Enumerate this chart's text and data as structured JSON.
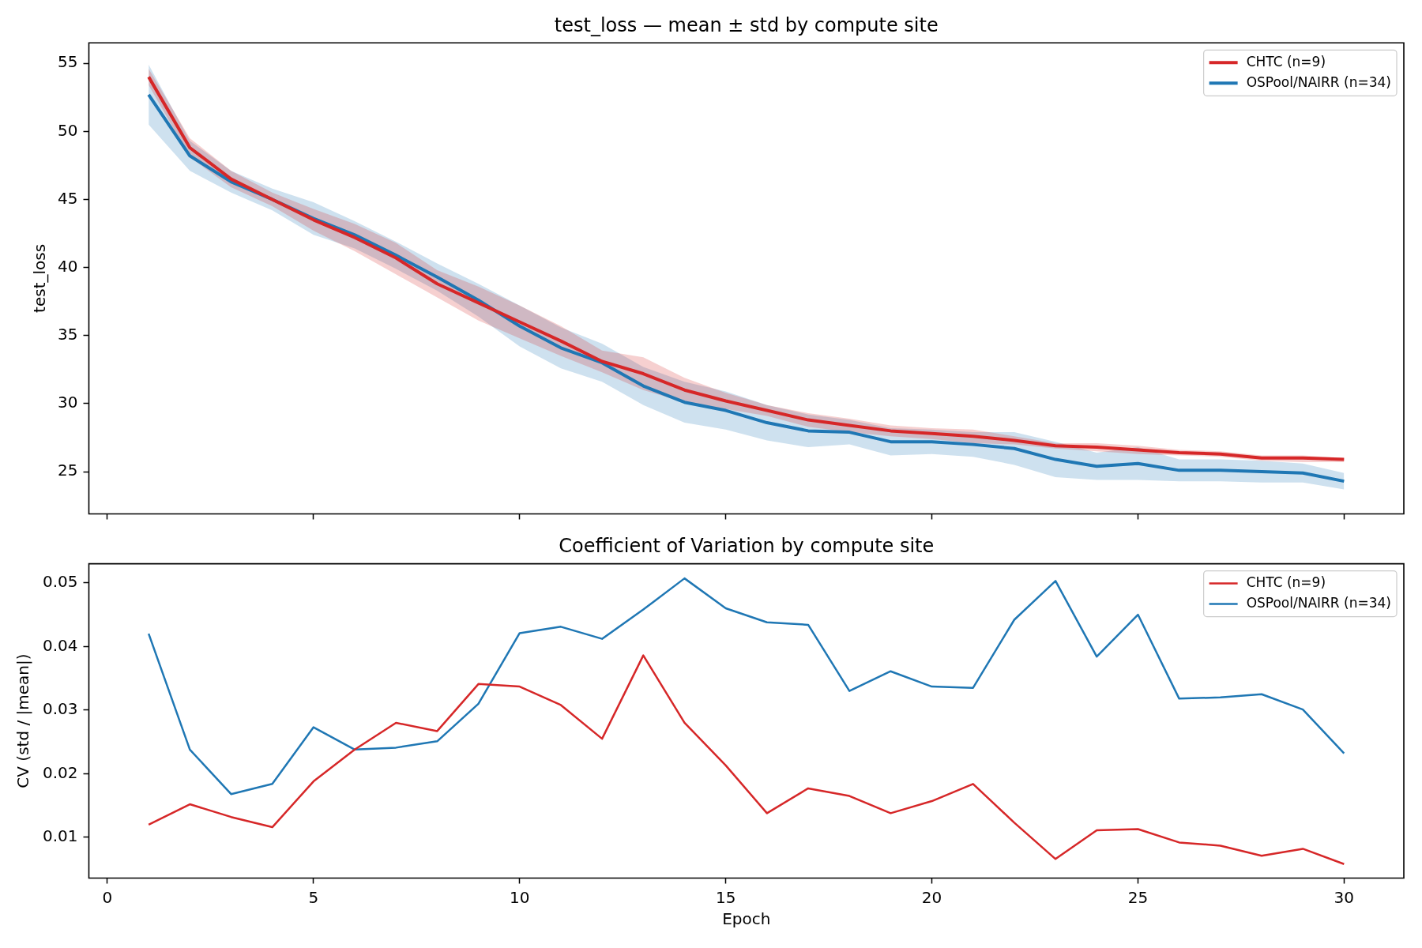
{
  "chart_data": [
    {
      "type": "line",
      "title": "test_loss — mean ± std by compute site",
      "ylabel": "test_loss",
      "x": [
        1,
        2,
        3,
        4,
        5,
        6,
        7,
        8,
        9,
        10,
        11,
        12,
        13,
        14,
        15,
        16,
        17,
        18,
        19,
        20,
        21,
        22,
        23,
        24,
        25,
        26,
        27,
        28,
        29,
        30
      ],
      "xlim": [
        -0.45,
        31.45
      ],
      "xticks": [
        0,
        5,
        10,
        15,
        20,
        25,
        30
      ],
      "ylim": [
        21.9,
        56.5
      ],
      "yticks": [
        25,
        30,
        35,
        40,
        45,
        50,
        55
      ],
      "tick_labels": "y",
      "legend": "top right",
      "series": [
        {
          "name": "CHTC (n=9)",
          "color": "#d62728",
          "values": [
            54.0,
            48.8,
            46.5,
            45.0,
            43.5,
            42.2,
            40.7,
            38.8,
            37.4,
            36.0,
            34.6,
            33.1,
            32.2,
            31.0,
            30.2,
            29.5,
            28.8,
            28.4,
            28.0,
            27.8,
            27.6,
            27.3,
            26.9,
            26.8,
            26.6,
            26.4,
            26.3,
            26.0,
            26.0,
            25.9
          ],
          "lower": [
            53.4,
            48.1,
            45.9,
            44.5,
            42.7,
            41.2,
            39.5,
            37.8,
            36.1,
            34.8,
            33.5,
            32.3,
            31.0,
            30.1,
            29.6,
            29.1,
            28.3,
            27.9,
            27.6,
            27.4,
            27.1,
            27.0,
            26.7,
            26.5,
            26.3,
            26.2,
            26.1,
            25.8,
            25.7,
            25.7
          ],
          "upper": [
            54.6,
            49.5,
            47.1,
            45.5,
            44.3,
            43.2,
            41.8,
            39.8,
            38.6,
            37.2,
            35.7,
            33.9,
            33.4,
            31.9,
            30.8,
            29.9,
            29.3,
            28.9,
            28.4,
            28.2,
            28.1,
            27.6,
            27.1,
            27.1,
            26.9,
            26.6,
            26.5,
            26.2,
            26.2,
            26.0
          ]
        },
        {
          "name": "OSPool/NAIRR (n=34)",
          "color": "#1f77b4",
          "values": [
            52.7,
            48.2,
            46.3,
            45.0,
            43.6,
            42.4,
            40.9,
            39.3,
            37.6,
            35.7,
            34.1,
            33.0,
            31.3,
            30.1,
            29.5,
            28.6,
            28.0,
            27.9,
            27.2,
            27.2,
            27.0,
            26.7,
            25.9,
            25.4,
            25.6,
            25.1,
            25.1,
            25.0,
            24.9,
            24.3
          ],
          "lower": [
            50.5,
            47.1,
            45.5,
            44.2,
            42.4,
            41.4,
            39.9,
            38.3,
            36.4,
            34.2,
            32.6,
            31.6,
            29.9,
            28.6,
            28.1,
            27.3,
            26.8,
            27.0,
            26.2,
            26.3,
            26.1,
            25.5,
            24.6,
            24.4,
            24.4,
            24.3,
            24.3,
            24.2,
            24.2,
            23.7
          ],
          "upper": [
            54.9,
            49.3,
            47.1,
            45.8,
            44.8,
            43.4,
            41.9,
            40.3,
            38.8,
            37.2,
            35.6,
            34.4,
            32.7,
            31.6,
            30.9,
            29.9,
            29.2,
            28.8,
            28.2,
            28.1,
            27.9,
            27.9,
            27.2,
            26.4,
            26.8,
            25.9,
            25.9,
            25.8,
            25.6,
            24.9
          ]
        }
      ]
    },
    {
      "type": "line",
      "title": "Coefficient of Variation by compute site",
      "xlabel": "Epoch",
      "ylabel": "CV (std / |mean|)",
      "x": [
        1,
        2,
        3,
        4,
        5,
        6,
        7,
        8,
        9,
        10,
        11,
        12,
        13,
        14,
        15,
        16,
        17,
        18,
        19,
        20,
        21,
        22,
        23,
        24,
        25,
        26,
        27,
        28,
        29,
        30
      ],
      "xlim": [
        -0.45,
        31.45
      ],
      "xticks": [
        0,
        5,
        10,
        15,
        20,
        25,
        30
      ],
      "ylim": [
        0.0036,
        0.053
      ],
      "yticks": [
        0.01,
        0.02,
        0.03,
        0.04,
        0.05
      ],
      "legend": "top right",
      "series": [
        {
          "name": "CHTC (n=9)",
          "color": "#d62728",
          "values": [
            0.012,
            0.0152,
            0.0132,
            0.0116,
            0.0188,
            0.0238,
            0.028,
            0.0267,
            0.0341,
            0.0337,
            0.0308,
            0.0255,
            0.0386,
            0.028,
            0.0213,
            0.0138,
            0.0177,
            0.0165,
            0.0138,
            0.0157,
            0.0184,
            0.0123,
            0.0066,
            0.0111,
            0.0113,
            0.0092,
            0.0087,
            0.0071,
            0.0082,
            0.0058
          ]
        },
        {
          "name": "OSPool/NAIRR (n=34)",
          "color": "#1f77b4",
          "values": [
            0.042,
            0.0238,
            0.0168,
            0.0184,
            0.0273,
            0.0238,
            0.0241,
            0.0251,
            0.031,
            0.0421,
            0.0431,
            0.0412,
            0.0458,
            0.0507,
            0.046,
            0.0438,
            0.0434,
            0.033,
            0.0361,
            0.0337,
            0.0335,
            0.0442,
            0.0503,
            0.0384,
            0.045,
            0.0318,
            0.032,
            0.0325,
            0.0301,
            0.0232
          ]
        }
      ]
    }
  ]
}
